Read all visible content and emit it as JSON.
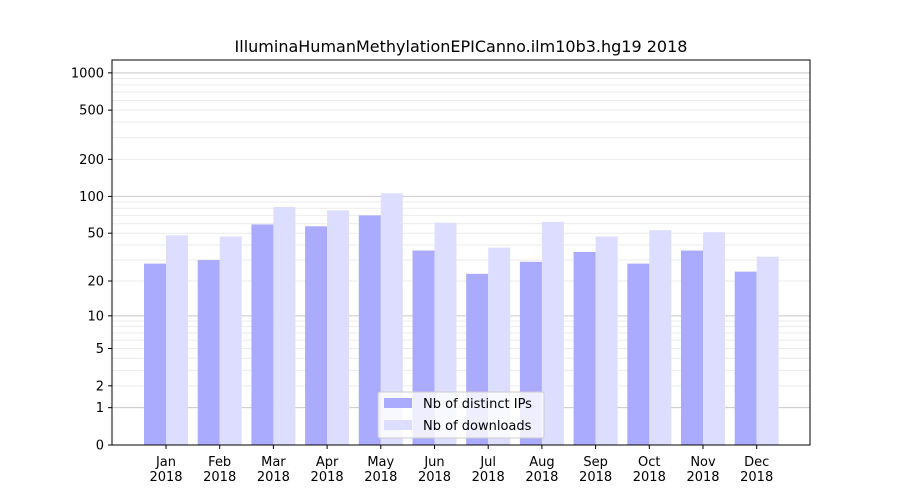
{
  "chart_data": {
    "type": "bar",
    "title": "IlluminaHumanMethylationEPICanno.ilm10b3.hg19 2018",
    "xlabel": "",
    "ylabel": "",
    "yscale": "log(1+y)",
    "ylim": [
      0,
      1270
    ],
    "yticks": [
      0,
      1,
      2,
      5,
      10,
      20,
      50,
      100,
      200,
      500,
      1000
    ],
    "grid": true,
    "categories": [
      "Jan\n2018",
      "Feb\n2018",
      "Mar\n2018",
      "Apr\n2018",
      "May\n2018",
      "Jun\n2018",
      "Jul\n2018",
      "Aug\n2018",
      "Sep\n2018",
      "Oct\n2018",
      "Nov\n2018",
      "Dec\n2018"
    ],
    "series": [
      {
        "name": "Nb of distinct IPs",
        "color": "#aaaaff",
        "values": [
          28,
          30,
          59,
          57,
          70,
          36,
          23,
          29,
          35,
          28,
          36,
          24
        ]
      },
      {
        "name": "Nb of downloads",
        "color": "#ddddff",
        "values": [
          48,
          47,
          82,
          77,
          106,
          61,
          38,
          62,
          47,
          53,
          51,
          32
        ]
      }
    ],
    "legend": "bottom-center"
  }
}
